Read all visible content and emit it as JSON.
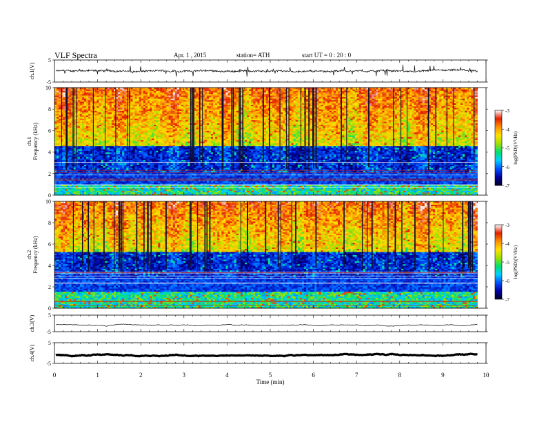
{
  "header": {
    "title": "VLF Spectra",
    "date": "Apr. 1 , 2015",
    "station": "station= ATH",
    "start": "start  UT  =   0 : 20 : 0"
  },
  "chart_data": {
    "type": "heatmap",
    "x_label": "Time (min)",
    "x_range": [
      0,
      10
    ],
    "x_ticks": [
      "0",
      "1",
      "2",
      "3",
      "4",
      "5",
      "6",
      "7",
      "8",
      "9",
      "10"
    ],
    "data_end_min": 9.8,
    "panels": [
      {
        "id": "ch1_trace",
        "kind": "trace",
        "ylabel": "ch.1(V)",
        "ylim": [
          -5,
          5
        ],
        "yticks": [
          "5",
          "-5"
        ],
        "level": 0.0,
        "noise": 0.7,
        "spike_amp": 2.6,
        "spike_count": 40,
        "bold": false
      },
      {
        "id": "ch1_spec",
        "kind": "spectrogram",
        "ylabel": "ch.1\nFrequency (kHz)",
        "ylim": [
          0,
          10
        ],
        "yticks": [
          "0",
          "2",
          "4",
          "6",
          "8",
          "10"
        ],
        "dark_band_khz": [
          2.2,
          4.6
        ],
        "blue_band_khz": [
          1.0,
          3.0
        ]
      },
      {
        "id": "ch2_spec",
        "kind": "spectrogram",
        "ylabel": "ch.2\nFrequency (kHz)",
        "ylim": [
          0,
          10
        ],
        "yticks": [
          "0",
          "2",
          "4",
          "6",
          "8",
          "10"
        ],
        "dark_band_khz": [
          3.0,
          5.3
        ],
        "blue_band_khz": [
          1.6,
          3.2
        ]
      },
      {
        "id": "ch3_trace",
        "kind": "trace",
        "ylabel": "ch.3(V)",
        "ylim": [
          -5,
          5
        ],
        "yticks": [
          "5",
          "-5"
        ],
        "level": -1.0,
        "noise": 0.15,
        "spike_amp": 0.4,
        "spike_count": 6,
        "bold": false
      },
      {
        "id": "ch4_trace",
        "kind": "trace",
        "ylabel": "ch.4(V)",
        "ylim": [
          -5,
          5
        ],
        "yticks": [
          "5",
          "-5"
        ],
        "level": -1.0,
        "noise": 0.05,
        "spike_amp": 0.0,
        "spike_count": 0,
        "bold": true
      }
    ],
    "colorbar": {
      "label": "log(PSD)(V²/Hz)",
      "range": [
        -7,
        -3
      ],
      "ticks": [
        "-3",
        "-4",
        "-5",
        "-6",
        "-7"
      ],
      "colors": [
        "#000020",
        "#0000a0",
        "#0050ff",
        "#00d0ff",
        "#00e070",
        "#a0e000",
        "#ffe000",
        "#ff9000",
        "#e02000",
        "#ffffff"
      ]
    }
  }
}
